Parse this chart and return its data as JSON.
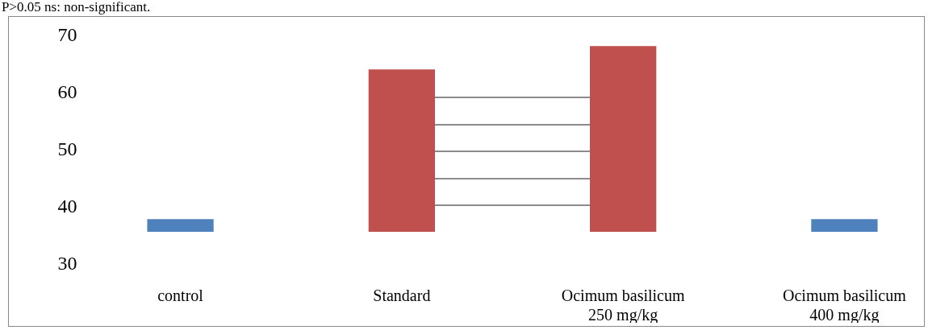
{
  "chart_data": {
    "type": "bar",
    "annotations": [
      "P>0.05 ns: non-significant."
    ],
    "categories": [
      "control",
      "Standard",
      "Ocimum basilicum\n250 mg/kg",
      "Ocimum basilicum\n400 mg/kg"
    ],
    "base": [
      35.5,
      35.5,
      35.5,
      35.5
    ],
    "values": [
      2.2,
      28.4,
      32.5,
      2.2
    ],
    "colors": [
      "#4f81bd",
      "#c0504d",
      "#c0504d",
      "#4f81bd"
    ],
    "ylim": [
      30,
      70
    ],
    "yticks": [
      30,
      40,
      50,
      60,
      70
    ],
    "grid": false,
    "legend": false
  }
}
